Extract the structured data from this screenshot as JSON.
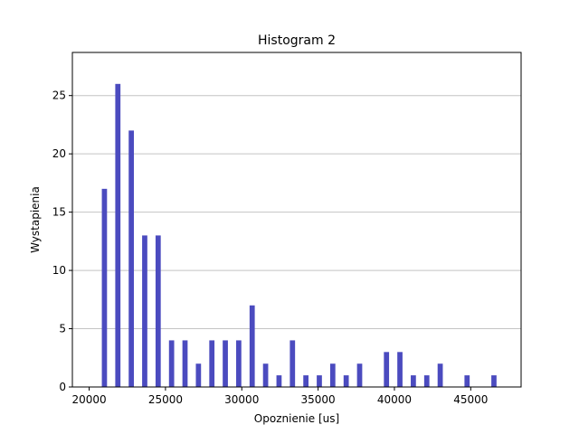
{
  "chart_data": {
    "type": "bar",
    "title": "Histogram 2",
    "xlabel": "Opoznienie [us]",
    "ylabel": "Wystapienia",
    "xlim": [
      18900,
      48300
    ],
    "ylim": [
      0,
      28.7
    ],
    "xticks": [
      20000,
      25000,
      30000,
      35000,
      40000,
      45000
    ],
    "yticks": [
      0,
      5,
      10,
      15,
      20,
      25
    ],
    "grid": "y",
    "bar_color": "#4b4bbf",
    "bar_width": 340,
    "x": [
      21000,
      21880,
      22760,
      23640,
      24520,
      25400,
      26280,
      27160,
      28040,
      28920,
      29800,
      30680,
      31560,
      32440,
      33320,
      34200,
      35080,
      35960,
      36840,
      37720,
      39480,
      40360,
      41240,
      42120,
      43000,
      44760,
      46520
    ],
    "values": [
      17,
      26,
      22,
      13,
      13,
      4,
      4,
      2,
      4,
      4,
      4,
      7,
      2,
      1,
      4,
      1,
      1,
      2,
      1,
      2,
      3,
      3,
      1,
      1,
      2,
      1,
      1
    ]
  }
}
